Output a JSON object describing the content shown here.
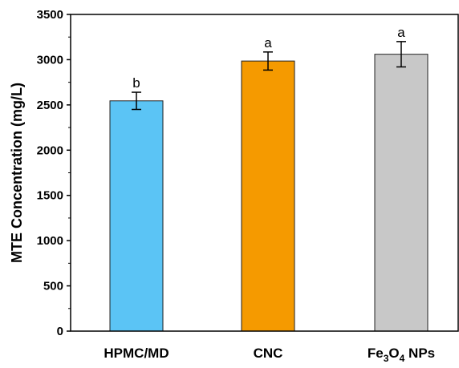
{
  "chart_data": {
    "type": "bar",
    "categories": [
      "HPMC/MD",
      "CNC",
      "Fe3O4 NPs"
    ],
    "category_labels": [
      {
        "base": "HPMC/MD"
      },
      {
        "base": "CNC"
      },
      {
        "base": "Fe",
        "sub1": "3",
        "mid": "O",
        "sub2": "4",
        "tail": " NPs"
      }
    ],
    "values": [
      2545,
      2985,
      3060
    ],
    "errors": [
      95,
      100,
      140
    ],
    "significance": [
      "b",
      "a",
      "a"
    ],
    "colors": [
      "#5BC4F5",
      "#F59A00",
      "#C8C8C8"
    ],
    "ylabel": "MTE Concentration (mg/L)",
    "xlabel": "",
    "ylim": [
      0,
      3500
    ],
    "yticks": [
      0,
      500,
      1000,
      1500,
      2000,
      2500,
      3000,
      3500
    ],
    "grid": false,
    "legend": "none"
  }
}
